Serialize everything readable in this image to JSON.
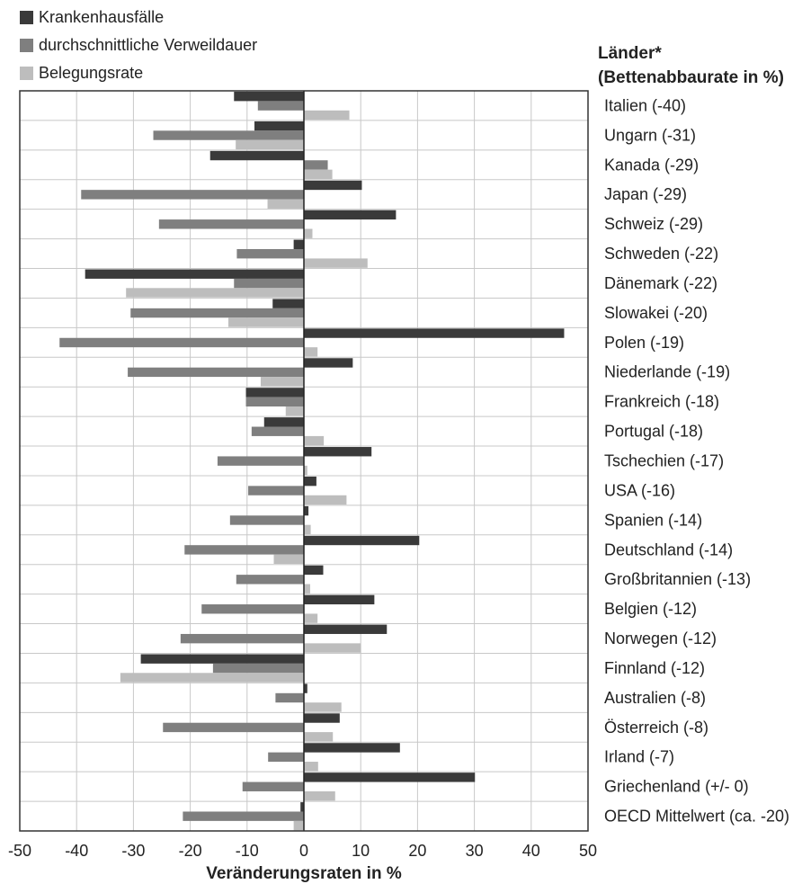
{
  "legend": {
    "items": [
      {
        "label": "Krankenhausfälle",
        "color": "#3a3a3a"
      },
      {
        "label": "durchschnittliche Verweildauer",
        "color": "#7f7f7f"
      },
      {
        "label": "Belegungsrate",
        "color": "#bdbdbd"
      }
    ]
  },
  "countries_title": {
    "line1": "Länder*",
    "line2": "(Bettenabbaurate in %)"
  },
  "chart_data": {
    "type": "bar",
    "orientation": "horizontal",
    "categories": [
      "Italien (-40)",
      "Ungarn (-31)",
      "Kanada (-29)",
      "Japan (-29)",
      "Schweiz (-29)",
      "Schweden (-22)",
      "Dänemark (-22)",
      "Slowakei (-20)",
      "Polen (-19)",
      "Niederlande (-19)",
      "Frankreich (-18)",
      "Portugal (-18)",
      "Tschechien (-17)",
      "USA (-16)",
      "Spanien (-14)",
      "Deutschland (-14)",
      "Großbritannien (-13)",
      "Belgien (-12)",
      "Norwegen (-12)",
      "Finnland (-12)",
      "Australien (-8)",
      "Österreich (-8)",
      "Irland (-7)",
      "Griechenland (+/- 0)",
      "OECD Mittelwert (ca. -20)"
    ],
    "series": [
      {
        "name": "Krankenhausfälle",
        "color": "#3a3a3a",
        "values": [
          -12.3,
          -8.7,
          -16.5,
          10.2,
          16.2,
          -1.8,
          -38.5,
          -5.5,
          45.8,
          8.6,
          -10.2,
          -7.0,
          11.9,
          2.2,
          0.8,
          20.3,
          3.4,
          12.4,
          14.6,
          -28.7,
          0.6,
          6.3,
          16.9,
          30.1,
          -0.6
        ]
      },
      {
        "name": "durchschnittliche Verweildauer",
        "color": "#7f7f7f",
        "values": [
          -8.1,
          -26.5,
          4.2,
          -39.2,
          -25.5,
          -11.8,
          -12.3,
          -30.5,
          -43.0,
          -31.0,
          -10.2,
          -9.2,
          -15.2,
          -9.8,
          -13.0,
          -21.0,
          -11.9,
          -18.0,
          -21.7,
          -16.0,
          -5.0,
          -24.8,
          -6.3,
          -10.8,
          -21.3
        ]
      },
      {
        "name": "Belegungsrate",
        "color": "#bdbdbd",
        "values": [
          8.0,
          -12.0,
          5.0,
          -6.4,
          1.5,
          11.2,
          -31.3,
          -13.3,
          2.4,
          -7.6,
          -3.2,
          3.5,
          0.6,
          7.5,
          1.2,
          -5.3,
          1.1,
          2.4,
          10.0,
          -32.3,
          6.6,
          5.1,
          2.5,
          5.5,
          -1.8
        ]
      }
    ],
    "xlim": [
      -50,
      50
    ],
    "xticks": [
      -50,
      -40,
      -30,
      -20,
      -10,
      0,
      10,
      20,
      30,
      40,
      50
    ],
    "xlabel": "Veränderungsraten in %",
    "grid": true
  }
}
